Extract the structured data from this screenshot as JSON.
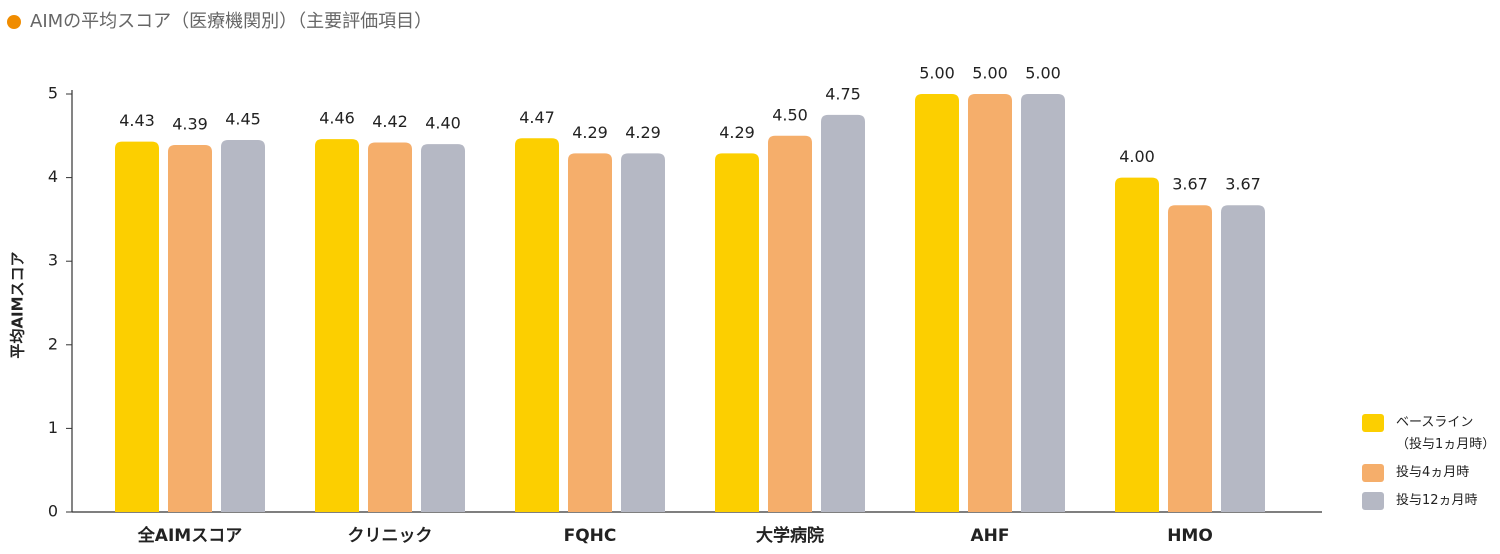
{
  "chart_data": {
    "type": "bar",
    "title": "AIMの平均スコア（医療機関別）（主要評価項目）",
    "y_label": "平均AIMスコア",
    "categories": [
      "全AIMスコア",
      "クリニック",
      "FQHC",
      "大学病院",
      "AHF",
      "HMO"
    ],
    "series": [
      {
        "name": "ベースライン\n（投与1ヵ月時）",
        "color": "#fccf00",
        "values": [
          4.43,
          4.46,
          4.47,
          4.29,
          5.0,
          4.0
        ],
        "value_labels": [
          "4.43",
          "4.46",
          "4.47",
          "4.29",
          "5.00",
          "4.00"
        ]
      },
      {
        "name": "投与4ヵ月時",
        "color": "#f5ae6b",
        "values": [
          4.39,
          4.42,
          4.29,
          4.5,
          5.0,
          3.67
        ],
        "value_labels": [
          "4.39",
          "4.42",
          "4.29",
          "4.50",
          "5.00",
          "3.67"
        ]
      },
      {
        "name": "投与12ヵ月時",
        "color": "#b5b8c4",
        "values": [
          4.45,
          4.4,
          4.29,
          4.75,
          5.0,
          3.67
        ],
        "value_labels": [
          "4.45",
          "4.40",
          "4.29",
          "4.75",
          "5.00",
          "3.67"
        ]
      }
    ],
    "ylim": [
      0,
      5
    ],
    "yticks": [
      0,
      1,
      2,
      3,
      4,
      5
    ]
  }
}
